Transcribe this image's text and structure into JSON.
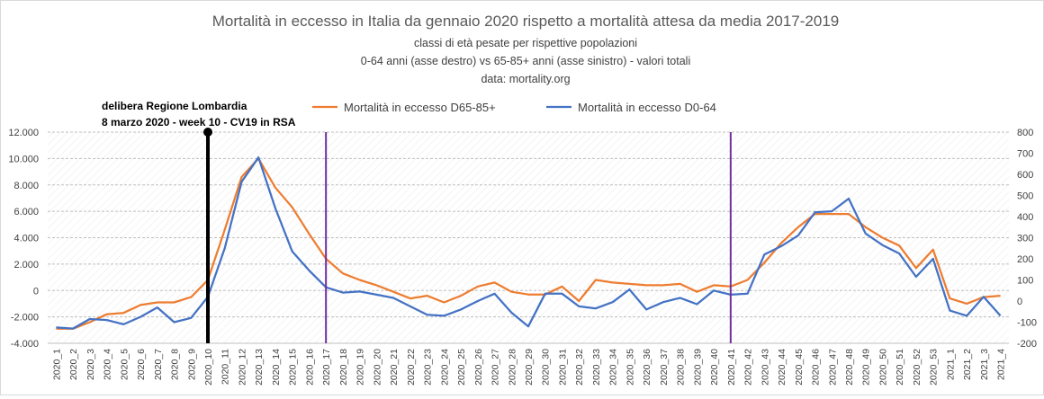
{
  "chart_data": {
    "type": "line",
    "title": "Mortalità in eccesso in Italia da gennaio 2020 rispetto a mortalità attesa da media 2017-2019",
    "subtitles": [
      "classi di età pesate per rispettive popolazioni",
      "0-64 anni (asse destro) vs 65-85+ anni (asse sinistro) - valori totali",
      "data: mortality.org"
    ],
    "xlabel": "",
    "ylabel": "",
    "y_left": {
      "min": -4000,
      "max": 12000,
      "step": 2000,
      "tick_labels": [
        "-4.000",
        "-2.000",
        "0",
        "2.000",
        "4.000",
        "6.000",
        "8.000",
        "10.000",
        "12.000"
      ]
    },
    "y_right": {
      "min": -200,
      "max": 800,
      "step": 100,
      "tick_labels": [
        "-200",
        "-100",
        "0",
        "100",
        "200",
        "300",
        "400",
        "500",
        "600",
        "700",
        "800"
      ]
    },
    "grid": "horizontal dashed",
    "legend_position": "top",
    "categories": [
      "2020_1",
      "2020_2",
      "2020_3",
      "2020_4",
      "2020_5",
      "2020_6",
      "2020_7",
      "2020_8",
      "2020_9",
      "2020_10",
      "2020_11",
      "2020_12",
      "2020_13",
      "2020_14",
      "2020_15",
      "2020_16",
      "2020_17",
      "2020_18",
      "2020_19",
      "2020_20",
      "2020_21",
      "2020_22",
      "2020_23",
      "2020_24",
      "2020_25",
      "2020_26",
      "2020_27",
      "2020_28",
      "2020_29",
      "2020_30",
      "2020_31",
      "2020_32",
      "2020_33",
      "2020_34",
      "2020_35",
      "2020_36",
      "2020_37",
      "2020_38",
      "2020_39",
      "2020_40",
      "2020_41",
      "2020_42",
      "2020_43",
      "2020_44",
      "2020_45",
      "2020_46",
      "2020_47",
      "2020_48",
      "2020_49",
      "2020_50",
      "2020_51",
      "2020_52",
      "2020_53",
      "2021_1",
      "2021_2",
      "2021_3",
      "2021_4"
    ],
    "series": [
      {
        "name": "Mortalità in eccesso D65-85+",
        "axis": "left",
        "color": "#ed7d31",
        "values": [
          -2900,
          -2900,
          -2400,
          -1800,
          -1700,
          -1100,
          -900,
          -900,
          -500,
          800,
          4600,
          8600,
          10000,
          7800,
          6300,
          4300,
          2400,
          1300,
          800,
          400,
          -100,
          -600,
          -400,
          -900,
          -400,
          300,
          600,
          -100,
          -300,
          -300,
          300,
          -800,
          800,
          600,
          500,
          400,
          400,
          500,
          -100,
          400,
          300,
          800,
          2100,
          3600,
          4800,
          5800,
          5800,
          5800,
          4800,
          4000,
          3400,
          1700,
          3100,
          -600,
          -1000,
          -500,
          -400
        ]
      },
      {
        "name": "Mortalità in eccesso D0-64",
        "axis": "right",
        "color": "#4472c4",
        "values": [
          -125,
          -130,
          -85,
          -90,
          -110,
          -75,
          -30,
          -100,
          -80,
          20,
          250,
          565,
          680,
          440,
          235,
          145,
          65,
          40,
          45,
          30,
          15,
          -25,
          -65,
          -70,
          -40,
          0,
          35,
          -55,
          -120,
          35,
          35,
          -25,
          -35,
          -5,
          55,
          -40,
          -5,
          15,
          -15,
          50,
          30,
          35,
          220,
          260,
          310,
          420,
          425,
          485,
          320,
          265,
          225,
          115,
          200,
          -45,
          -70,
          20,
          -70
        ]
      }
    ],
    "vertical_markers": [
      {
        "category": "2020_10",
        "color": "#000000",
        "label_lines": [
          "delibera Regione Lombardia",
          "8 marzo 2020  - week 10   - CV19 in RSA"
        ]
      },
      {
        "category": "2020_17",
        "color": "#7030a0"
      },
      {
        "category": "2020_41",
        "color": "#7030a0"
      }
    ]
  }
}
